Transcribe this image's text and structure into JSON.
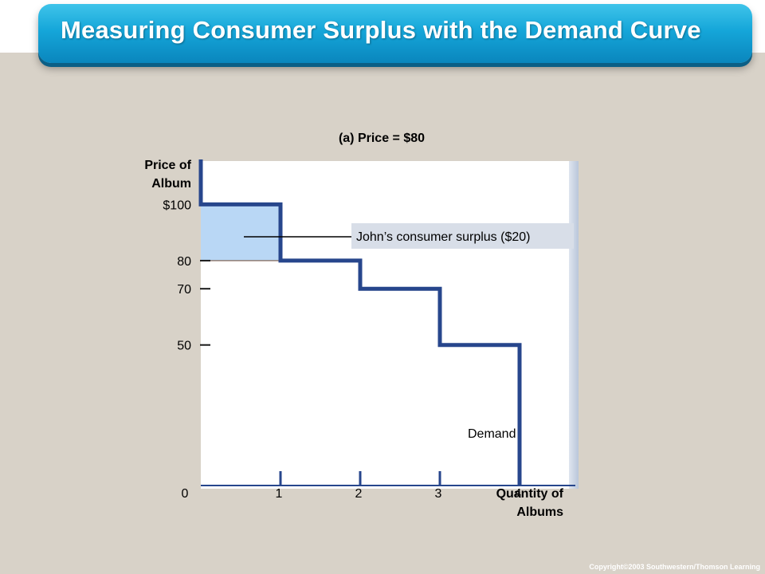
{
  "slide": {
    "title": "Measuring Consumer Surplus with the Demand Curve",
    "copyright": "Copyright©2003  Southwestern/Thomson Learning"
  },
  "colors": {
    "title_bar": "#15a6d9",
    "demand_curve": "#27468c",
    "surplus_fill": "#b9d7f5",
    "background": "#d8d2c8"
  },
  "chart_data": {
    "type": "line",
    "title": "(a) Price = $80",
    "ylabel_lines": [
      "Price of",
      "Album"
    ],
    "xlabel_lines": [
      "Quantity of",
      "Albums"
    ],
    "origin_label": "0",
    "x_ticks": [
      1,
      2,
      3,
      4
    ],
    "x_tick_labels": [
      "1",
      "2",
      "3",
      "4"
    ],
    "y_ticks": [
      100,
      80,
      70,
      50
    ],
    "y_tick_labels": [
      "$100",
      "80",
      "70",
      "50"
    ],
    "xlim": [
      0,
      4.7
    ],
    "ylim": [
      0,
      116
    ],
    "price": 80,
    "series": [
      {
        "name": "Demand",
        "points": [
          [
            0,
            116
          ],
          [
            0,
            100
          ],
          [
            1,
            100
          ],
          [
            1,
            80
          ],
          [
            2,
            80
          ],
          [
            2,
            70
          ],
          [
            3,
            70
          ],
          [
            3,
            50
          ],
          [
            4,
            50
          ],
          [
            4,
            0
          ]
        ]
      }
    ],
    "shaded_region": {
      "x": [
        0,
        1
      ],
      "y": [
        80,
        100
      ],
      "label": "John’s consumer surplus ($20)"
    },
    "grid": false
  }
}
